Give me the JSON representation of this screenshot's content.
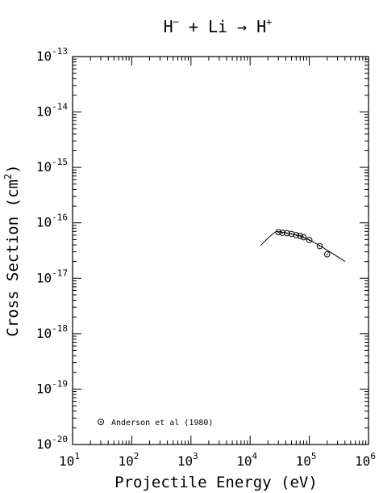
{
  "chart_data": {
    "type": "scatter",
    "title": {
      "projectile": "H",
      "projectile_charge": "−",
      "plus": "+",
      "target": "Li",
      "arrow": "→",
      "product": "H",
      "product_charge": "+"
    },
    "xlabel": "Projectile Energy (eV)",
    "ylabel": "Cross Section (cm²)",
    "y_label_parts": {
      "main": "Cross Section (cm",
      "exp": "2",
      "close": ")"
    },
    "x_scale": "log",
    "y_scale": "log",
    "xlim": [
      10,
      1000000
    ],
    "ylim": [
      1e-20,
      1e-13
    ],
    "x_ticks": [
      {
        "base": "10",
        "exp": "1",
        "value": 10
      },
      {
        "base": "10",
        "exp": "2",
        "value": 100
      },
      {
        "base": "10",
        "exp": "3",
        "value": 1000
      },
      {
        "base": "10",
        "exp": "4",
        "value": 10000
      },
      {
        "base": "10",
        "exp": "5",
        "value": 100000
      },
      {
        "base": "10",
        "exp": "6",
        "value": 1000000
      }
    ],
    "y_ticks": [
      {
        "base": "10",
        "exp": "-20",
        "value": 1e-20
      },
      {
        "base": "10",
        "exp": "-19",
        "value": 1e-19
      },
      {
        "base": "10",
        "exp": "-18",
        "value": 1e-18
      },
      {
        "base": "10",
        "exp": "-17",
        "value": 1e-17
      },
      {
        "base": "10",
        "exp": "-16",
        "value": 1e-16
      },
      {
        "base": "10",
        "exp": "-15",
        "value": 1e-15
      },
      {
        "base": "10",
        "exp": "-14",
        "value": 1e-14
      },
      {
        "base": "10",
        "exp": "-13",
        "value": 1e-13
      }
    ],
    "grid": false,
    "legend_position": "bottom-left",
    "series": [
      {
        "name": "Anderson et al (1980)",
        "kind": "points",
        "marker": "circled-dot",
        "x": [
          30000,
          35000,
          42000,
          50000,
          60000,
          70000,
          80000,
          100000,
          150000,
          200000
        ],
        "y": [
          6.8e-17,
          6.6e-17,
          6.5e-17,
          6.3e-17,
          6e-17,
          5.8e-17,
          5.5e-17,
          4.9e-17,
          3.8e-17,
          2.7e-17
        ]
      },
      {
        "kind": "fit-curve",
        "x": [
          15000,
          20000,
          25000,
          28000,
          35000,
          50000,
          70000,
          100000,
          150000,
          200000,
          300000,
          400000
        ],
        "y": [
          3.9e-17,
          5.3e-17,
          6.5e-17,
          7e-17,
          6.8e-17,
          6.3e-17,
          5.8e-17,
          4.9e-17,
          3.9e-17,
          3.2e-17,
          2.45e-17,
          2e-17
        ]
      }
    ]
  }
}
